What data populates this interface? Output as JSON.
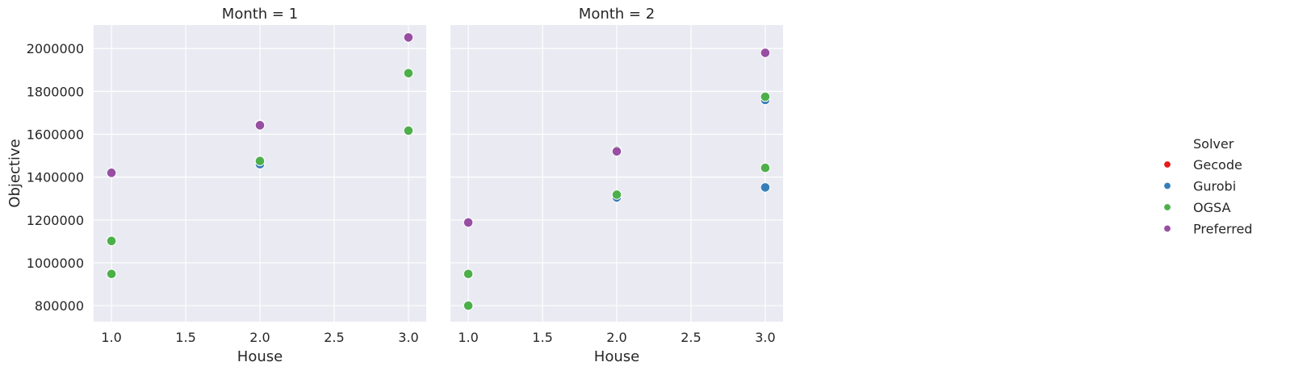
{
  "chart_data": {
    "type": "scatter",
    "facets": [
      {
        "title": "Month = 1",
        "xlabel": "House",
        "ylabel": "Objective",
        "points": [
          {
            "series": "Gurobi",
            "x": 1.0,
            "y": 948000
          },
          {
            "series": "Gurobi",
            "x": 1.0,
            "y": 1102000
          },
          {
            "series": "Gurobi",
            "x": 2.0,
            "y": 1460000
          },
          {
            "series": "Gurobi",
            "x": 2.0,
            "y": 1645000
          },
          {
            "series": "Gurobi",
            "x": 3.0,
            "y": 1617000
          },
          {
            "series": "Gurobi",
            "x": 3.0,
            "y": 1885000
          },
          {
            "series": "OGSA",
            "x": 1.0,
            "y": 948000
          },
          {
            "series": "OGSA",
            "x": 1.0,
            "y": 1102000
          },
          {
            "series": "OGSA",
            "x": 2.0,
            "y": 1475000
          },
          {
            "series": "OGSA",
            "x": 3.0,
            "y": 1617000
          },
          {
            "series": "OGSA",
            "x": 3.0,
            "y": 1885000
          },
          {
            "series": "Preferred",
            "x": 1.0,
            "y": 1420000
          },
          {
            "series": "Preferred",
            "x": 2.0,
            "y": 1642000
          },
          {
            "series": "Preferred",
            "x": 3.0,
            "y": 2052000
          }
        ]
      },
      {
        "title": "Month = 2",
        "xlabel": "House",
        "ylabel": "",
        "points": [
          {
            "series": "Gurobi",
            "x": 1.0,
            "y": 800000
          },
          {
            "series": "Gurobi",
            "x": 1.0,
            "y": 948000
          },
          {
            "series": "Gurobi",
            "x": 2.0,
            "y": 1305000
          },
          {
            "series": "Gurobi",
            "x": 2.0,
            "y": 1525000
          },
          {
            "series": "Gurobi",
            "x": 3.0,
            "y": 1352000
          },
          {
            "series": "Gurobi",
            "x": 3.0,
            "y": 1760000
          },
          {
            "series": "OGSA",
            "x": 1.0,
            "y": 800000
          },
          {
            "series": "OGSA",
            "x": 1.0,
            "y": 948000
          },
          {
            "series": "OGSA",
            "x": 2.0,
            "y": 1318000
          },
          {
            "series": "OGSA",
            "x": 2.0,
            "y": 1525000
          },
          {
            "series": "OGSA",
            "x": 3.0,
            "y": 1443000
          },
          {
            "series": "OGSA",
            "x": 3.0,
            "y": 1775000
          },
          {
            "series": "Preferred",
            "x": 1.0,
            "y": 1188000
          },
          {
            "series": "Preferred",
            "x": 2.0,
            "y": 1520000
          },
          {
            "series": "Preferred",
            "x": 3.0,
            "y": 1980000
          }
        ]
      }
    ],
    "xlim": [
      0.88,
      3.12
    ],
    "ylim": [
      725000,
      2110000
    ],
    "xticks": [
      1.0,
      1.5,
      2.0,
      2.5,
      3.0
    ],
    "xtick_labels": [
      "1.0",
      "1.5",
      "2.0",
      "2.5",
      "3.0"
    ],
    "yticks": [
      800000,
      1000000,
      1200000,
      1400000,
      1600000,
      1800000,
      2000000
    ],
    "ytick_labels": [
      "800000",
      "1000000",
      "1200000",
      "1400000",
      "1600000",
      "1800000",
      "2000000"
    ],
    "grid": true,
    "legend": {
      "title": "Solver",
      "placement": "right",
      "entries": [
        {
          "name": "Gecode",
          "color": "#e41a1c"
        },
        {
          "name": "Gurobi",
          "color": "#377eb8"
        },
        {
          "name": "OGSA",
          "color": "#4daf4a"
        },
        {
          "name": "Preferred",
          "color": "#984ea3"
        }
      ]
    },
    "background_color": "#eaeaf2",
    "grid_color": "#ffffff"
  }
}
